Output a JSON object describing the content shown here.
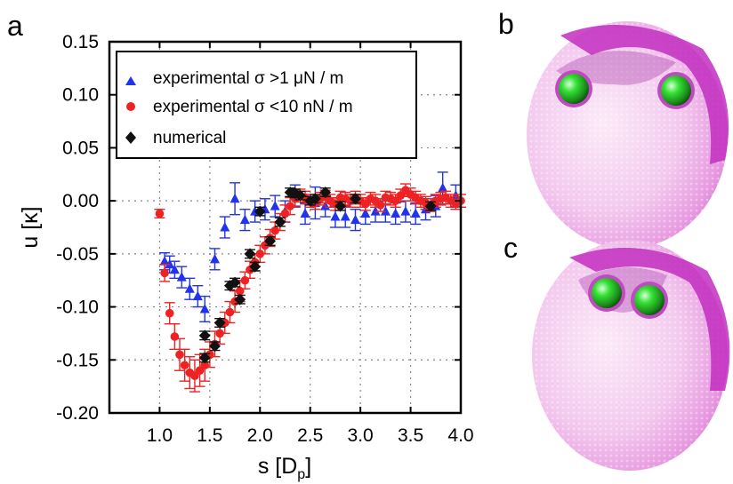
{
  "panels": {
    "a": "a",
    "b": "b",
    "c": "c"
  },
  "chart_data": {
    "type": "scatter",
    "xlabel": "s [D",
    "xlabel_sub": "p",
    "xlabel_close": "]",
    "ylabel": "u [κ]",
    "xlim": [
      0.5,
      4.0
    ],
    "ylim": [
      -0.2,
      0.15
    ],
    "xticks": [
      1.0,
      1.5,
      2.0,
      2.5,
      3.0,
      3.5,
      4.0
    ],
    "xtick_labels": [
      "1.0",
      "1.5",
      "2.0",
      "2.5",
      "3.0",
      "3.5",
      "4.0"
    ],
    "yticks": [
      0.15,
      0.1,
      0.05,
      0.0,
      -0.05,
      -0.1,
      -0.15,
      -0.2
    ],
    "ytick_labels": [
      "0.15",
      "0.10",
      "0.05",
      "0.00",
      "-0.05",
      "-0.10",
      "-0.15",
      "-0.20"
    ],
    "grid": true,
    "legend_position": "top-left",
    "series": [
      {
        "name": "experimental σ >1 μN / m",
        "color": "#2233ee",
        "marker": "triangle",
        "points": [
          [
            1.05,
            -0.057,
            0.008
          ],
          [
            1.1,
            -0.06,
            0.008
          ],
          [
            1.15,
            -0.065,
            0.008
          ],
          [
            1.22,
            -0.072,
            0.01
          ],
          [
            1.3,
            -0.083,
            0.01
          ],
          [
            1.38,
            -0.09,
            0.01
          ],
          [
            1.45,
            -0.102,
            0.012
          ],
          [
            1.55,
            -0.055,
            0.01
          ],
          [
            1.65,
            -0.025,
            0.01
          ],
          [
            1.75,
            0.002,
            0.015
          ],
          [
            1.85,
            -0.018,
            0.01
          ],
          [
            1.95,
            -0.01,
            0.01
          ],
          [
            2.05,
            -0.008,
            0.01
          ],
          [
            2.15,
            -0.005,
            0.01
          ],
          [
            2.25,
            -0.01,
            0.01
          ],
          [
            2.35,
            0.005,
            0.01
          ],
          [
            2.45,
            -0.012,
            0.01
          ],
          [
            2.55,
            -0.002,
            0.015
          ],
          [
            2.65,
            -0.005,
            0.01
          ],
          [
            2.75,
            -0.015,
            0.01
          ],
          [
            2.85,
            -0.015,
            0.01
          ],
          [
            2.95,
            -0.018,
            0.01
          ],
          [
            3.05,
            -0.012,
            0.01
          ],
          [
            3.15,
            -0.01,
            0.01
          ],
          [
            3.25,
            -0.01,
            0.01
          ],
          [
            3.35,
            -0.012,
            0.01
          ],
          [
            3.45,
            -0.01,
            0.01
          ],
          [
            3.55,
            -0.012,
            0.01
          ],
          [
            3.65,
            -0.008,
            0.01
          ],
          [
            3.75,
            -0.005,
            0.01
          ],
          [
            3.82,
            0.012,
            0.015
          ],
          [
            3.95,
            0.005,
            0.01
          ]
        ]
      },
      {
        "name": "experimental σ <10 nN / m",
        "color": "#ee2222",
        "marker": "circle",
        "points": [
          [
            1.0,
            -0.012,
            0.004
          ],
          [
            1.05,
            -0.068,
            0.008
          ],
          [
            1.1,
            -0.106,
            0.01
          ],
          [
            1.15,
            -0.128,
            0.012
          ],
          [
            1.2,
            -0.145,
            0.015
          ],
          [
            1.25,
            -0.155,
            0.015
          ],
          [
            1.3,
            -0.162,
            0.015
          ],
          [
            1.35,
            -0.165,
            0.015
          ],
          [
            1.4,
            -0.16,
            0.015
          ],
          [
            1.45,
            -0.155,
            0.015
          ],
          [
            1.5,
            -0.145,
            0.012
          ],
          [
            1.55,
            -0.135,
            0.012
          ],
          [
            1.6,
            -0.125,
            0.01
          ],
          [
            1.65,
            -0.115,
            0.01
          ],
          [
            1.7,
            -0.105,
            0.01
          ],
          [
            1.75,
            -0.095,
            0.01
          ],
          [
            1.8,
            -0.085,
            0.01
          ],
          [
            1.85,
            -0.075,
            0.008
          ],
          [
            1.9,
            -0.065,
            0.008
          ],
          [
            1.95,
            -0.058,
            0.008
          ],
          [
            2.0,
            -0.05,
            0.008
          ],
          [
            2.05,
            -0.042,
            0.008
          ],
          [
            2.1,
            -0.035,
            0.008
          ],
          [
            2.15,
            -0.028,
            0.008
          ],
          [
            2.2,
            -0.02,
            0.008
          ],
          [
            2.25,
            -0.012,
            0.008
          ],
          [
            2.3,
            -0.005,
            0.008
          ],
          [
            2.35,
            0.002,
            0.008
          ],
          [
            2.4,
            0.005,
            0.006
          ],
          [
            2.45,
            0.003,
            0.006
          ],
          [
            2.5,
            0.0,
            0.006
          ],
          [
            2.55,
            -0.002,
            0.006
          ],
          [
            2.6,
            0.002,
            0.006
          ],
          [
            2.65,
            0.004,
            0.006
          ],
          [
            2.7,
            0.0,
            0.006
          ],
          [
            2.75,
            -0.003,
            0.006
          ],
          [
            2.8,
            0.003,
            0.006
          ],
          [
            2.85,
            0.002,
            0.006
          ],
          [
            2.9,
            0.0,
            0.006
          ],
          [
            2.95,
            0.003,
            0.006
          ],
          [
            3.0,
            0.0,
            0.006
          ],
          [
            3.05,
            -0.003,
            0.006
          ],
          [
            3.1,
            0.002,
            0.006
          ],
          [
            3.15,
            0.0,
            0.006
          ],
          [
            3.2,
            -0.004,
            0.006
          ],
          [
            3.25,
            0.003,
            0.006
          ],
          [
            3.3,
            0.002,
            0.006
          ],
          [
            3.35,
            0.0,
            0.006
          ],
          [
            3.4,
            0.005,
            0.006
          ],
          [
            3.45,
            0.01,
            0.006
          ],
          [
            3.5,
            0.006,
            0.006
          ],
          [
            3.55,
            0.003,
            0.006
          ],
          [
            3.6,
            0.0,
            0.006
          ],
          [
            3.65,
            -0.002,
            0.006
          ],
          [
            3.7,
            -0.004,
            0.006
          ],
          [
            3.75,
            0.0,
            0.006
          ],
          [
            3.8,
            0.002,
            0.006
          ],
          [
            3.85,
            0.003,
            0.006
          ],
          [
            3.9,
            0.0,
            0.006
          ],
          [
            3.95,
            -0.002,
            0.006
          ],
          [
            4.0,
            0.0,
            0.006
          ]
        ]
      },
      {
        "name": "numerical",
        "color": "#111111",
        "marker": "diamond",
        "points": [
          [
            1.45,
            -0.148,
            0.004
          ],
          [
            1.45,
            -0.127,
            0.004
          ],
          [
            1.55,
            -0.137,
            0.004
          ],
          [
            1.6,
            -0.115,
            0.004
          ],
          [
            1.7,
            -0.08,
            0.004
          ],
          [
            1.75,
            -0.077,
            0.004
          ],
          [
            1.8,
            -0.093,
            0.004
          ],
          [
            1.9,
            -0.05,
            0.004
          ],
          [
            1.95,
            -0.062,
            0.004
          ],
          [
            2.0,
            -0.01,
            0.004
          ],
          [
            2.1,
            -0.038,
            0.004
          ],
          [
            2.2,
            -0.02,
            0.004
          ],
          [
            2.3,
            0.008,
            0.004
          ],
          [
            2.35,
            0.007,
            0.004
          ],
          [
            2.4,
            0.005,
            0.004
          ],
          [
            2.5,
            0.0,
            0.004
          ],
          [
            2.55,
            0.002,
            0.004
          ],
          [
            2.65,
            0.008,
            0.004
          ],
          [
            2.8,
            -0.005,
            0.004
          ],
          [
            2.95,
            0.002,
            0.004
          ],
          [
            3.7,
            -0.005,
            0.004
          ]
        ]
      }
    ]
  }
}
